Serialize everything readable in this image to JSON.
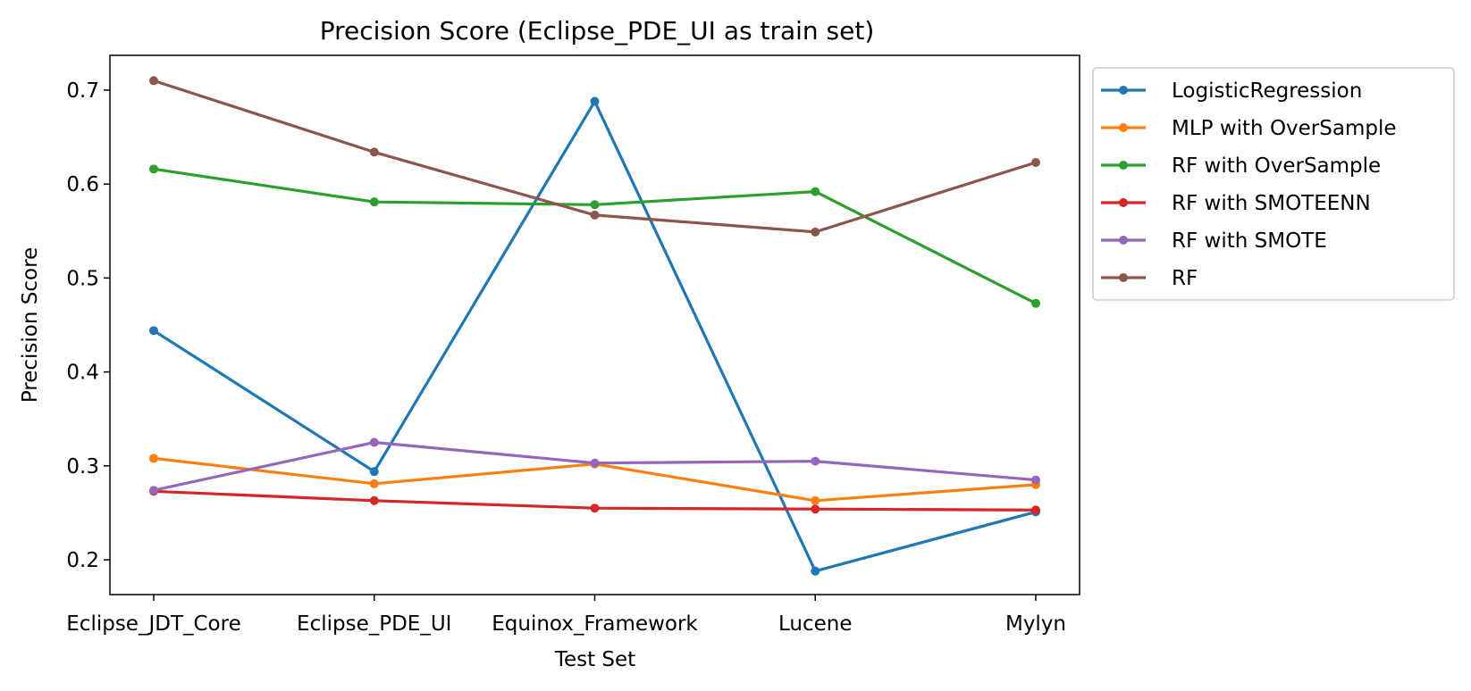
{
  "chart_data": {
    "type": "line",
    "title": "Precision Score (Eclipse_PDE_UI as train set)",
    "xlabel": "Test Set",
    "ylabel": "Precision Score",
    "categories": [
      "Eclipse_JDT_Core",
      "Eclipse_PDE_UI",
      "Equinox_Framework",
      "Lucene",
      "Mylyn"
    ],
    "ylim": [
      0.163,
      0.737
    ],
    "yticks": [
      "0.2",
      "0.3",
      "0.4",
      "0.5",
      "0.6",
      "0.7"
    ],
    "grid": false,
    "legend_position": "outside upper right",
    "series": [
      {
        "name": "LogisticRegression",
        "color": "#1f77b4",
        "values": [
          0.444,
          0.294,
          0.688,
          0.188,
          0.251
        ]
      },
      {
        "name": "MLP with OverSample",
        "color": "#ff7f0e",
        "values": [
          0.308,
          0.281,
          0.302,
          0.263,
          0.28
        ]
      },
      {
        "name": "RF with OverSample",
        "color": "#2ca02c",
        "values": [
          0.616,
          0.581,
          0.578,
          0.592,
          0.473
        ]
      },
      {
        "name": "RF with SMOTEENN",
        "color": "#d62728",
        "values": [
          0.273,
          0.263,
          0.255,
          0.254,
          0.253
        ]
      },
      {
        "name": "RF with SMOTE",
        "color": "#9467bd",
        "values": [
          0.274,
          0.325,
          0.303,
          0.305,
          0.285
        ]
      },
      {
        "name": "RF",
        "color": "#8c564b",
        "values": [
          0.71,
          0.634,
          0.567,
          0.549,
          0.623
        ]
      }
    ]
  }
}
